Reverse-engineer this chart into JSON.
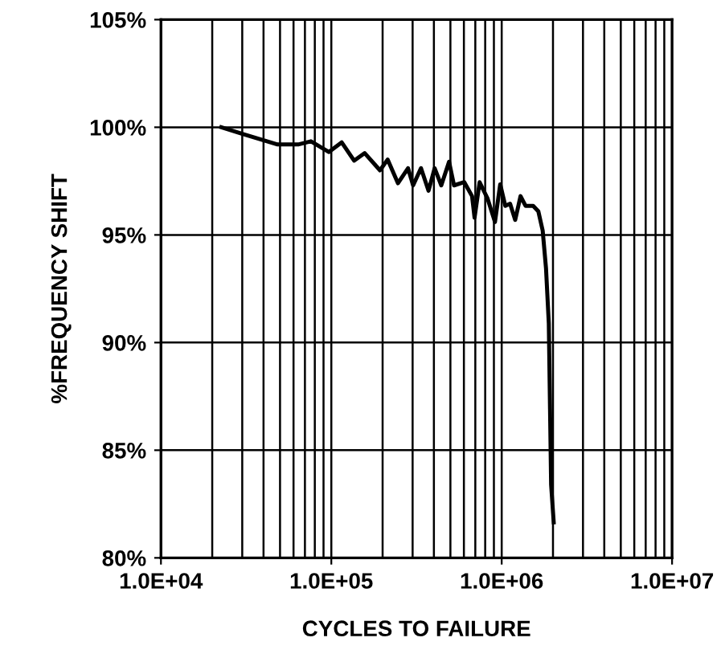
{
  "chart_data": {
    "type": "line",
    "xlabel": "CYCLES TO FAILURE",
    "ylabel": "%FREQUENCY SHIFT",
    "log": "x",
    "grid": true,
    "marker": "none",
    "line_style": "solid",
    "xlim": [
      10000,
      10000000
    ],
    "ylim": [
      80,
      105
    ],
    "xticks": [
      {
        "value": 10000,
        "label": "1.0E+04"
      },
      {
        "value": 20000,
        "label": null
      },
      {
        "value": 30000,
        "label": null
      },
      {
        "value": 40000,
        "label": null
      },
      {
        "value": 50000,
        "label": null
      },
      {
        "value": 60000,
        "label": null
      },
      {
        "value": 70000,
        "label": null
      },
      {
        "value": 80000,
        "label": null
      },
      {
        "value": 90000,
        "label": null
      },
      {
        "value": 100000,
        "label": "1.0E+05"
      },
      {
        "value": 200000,
        "label": null
      },
      {
        "value": 300000,
        "label": null
      },
      {
        "value": 400000,
        "label": null
      },
      {
        "value": 500000,
        "label": null
      },
      {
        "value": 600000,
        "label": null
      },
      {
        "value": 700000,
        "label": null
      },
      {
        "value": 800000,
        "label": null
      },
      {
        "value": 900000,
        "label": null
      },
      {
        "value": 1000000,
        "label": "1.0E+06"
      },
      {
        "value": 2000000,
        "label": null
      },
      {
        "value": 3000000,
        "label": null
      },
      {
        "value": 4000000,
        "label": null
      },
      {
        "value": 5000000,
        "label": null
      },
      {
        "value": 6000000,
        "label": null
      },
      {
        "value": 7000000,
        "label": null
      },
      {
        "value": 8000000,
        "label": null
      },
      {
        "value": 9000000,
        "label": null
      },
      {
        "value": 10000000,
        "label": "1.0E+07"
      }
    ],
    "yticks": [
      {
        "value": 80,
        "label": "80%"
      },
      {
        "value": 85,
        "label": "85%"
      },
      {
        "value": 90,
        "label": "90%"
      },
      {
        "value": 95,
        "label": "95%"
      },
      {
        "value": 100,
        "label": "100%"
      },
      {
        "value": 105,
        "label": "105%"
      }
    ],
    "x": [
      22600,
      29800,
      48400,
      63800,
      75900,
      96600,
      115000,
      136000,
      157000,
      193000,
      214000,
      246000,
      282000,
      302000,
      336000,
      372000,
      404000,
      442000,
      491000,
      525000,
      603000,
      670000,
      693000,
      742000,
      825000,
      913000,
      980000,
      1050000,
      1120000,
      1200000,
      1290000,
      1380000,
      1530000,
      1640000,
      1740000,
      1820000,
      1890000,
      1950000,
      2020000
    ],
    "series": [
      {
        "color": "#000000",
        "values": [
          100,
          99.7,
          99.2,
          99.2,
          99.35,
          98.85,
          99.3,
          98.45,
          98.8,
          98.0,
          98.5,
          97.4,
          98.1,
          97.3,
          98.1,
          97.05,
          98.1,
          97.3,
          98.4,
          97.3,
          97.45,
          96.8,
          95.8,
          97.45,
          96.7,
          95.6,
          97.35,
          96.35,
          96.45,
          95.7,
          96.8,
          96.35,
          96.35,
          96.1,
          95.2,
          93.45,
          90.9,
          83.4,
          81.65
        ]
      }
    ]
  }
}
